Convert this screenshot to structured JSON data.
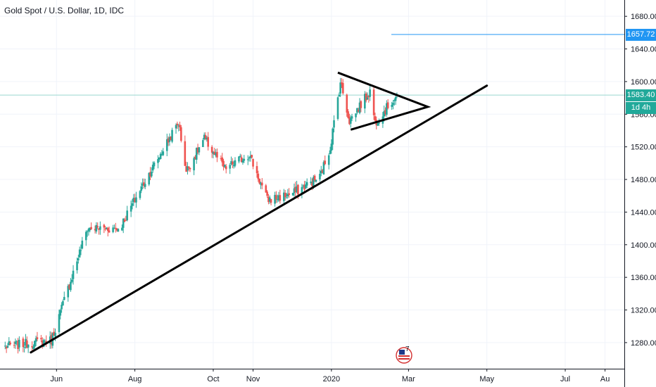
{
  "title": "Gold Spot / U.S. Dollar, 1D, IDC",
  "colors": {
    "up": "#26a69a",
    "down": "#ef5350",
    "current_line": "#9ad7cf",
    "target_line": "#2196f3",
    "countdown_bg": "#21a99a",
    "drawing": "#000000",
    "grid": "#f0f3fa",
    "axis_text": "#131722"
  },
  "price_labels": {
    "target": "1657.72",
    "current": "1583.40",
    "countdown": "1d 4h"
  },
  "logo_text": "7",
  "chart_data": {
    "type": "candlestick",
    "title": "Gold Spot / U.S. Dollar, 1D, IDC",
    "ylim": [
      1248,
      1700
    ],
    "yticks": [
      "1280.00",
      "1320.00",
      "1360.00",
      "1400.00",
      "1440.00",
      "1480.00",
      "1520.00",
      "1560.00",
      "1600.00",
      "1640.00",
      "1680.00"
    ],
    "ytick_values": [
      1280,
      1320,
      1360,
      1400,
      1440,
      1480,
      1520,
      1560,
      1600,
      1640,
      1680
    ],
    "xticks": [
      "Jun",
      "Aug",
      "Oct",
      "Nov",
      "2020",
      "Mar",
      "May",
      "Jul",
      "Au"
    ],
    "xtick_dates": [
      "2019-06-01",
      "2019-08-01",
      "2019-10-01",
      "2019-11-01",
      "2020-01-01",
      "2020-03-01",
      "2020-05-01",
      "2020-07-01",
      "2020-08-01"
    ],
    "xlim": [
      "2019-04-18",
      "2020-08-16"
    ],
    "grid": true,
    "current_price": 1583.4,
    "target_price": 1657.72,
    "anchors": [
      {
        "date": "2019-04-22",
        "price": 1275
      },
      {
        "date": "2019-05-28",
        "price": 1283
      },
      {
        "date": "2019-06-25",
        "price": 1420
      },
      {
        "date": "2019-07-20",
        "price": 1420
      },
      {
        "date": "2019-08-06",
        "price": 1470
      },
      {
        "date": "2019-09-04",
        "price": 1550
      },
      {
        "date": "2019-09-10",
        "price": 1490
      },
      {
        "date": "2019-09-24",
        "price": 1530
      },
      {
        "date": "2019-10-10",
        "price": 1493
      },
      {
        "date": "2019-10-29",
        "price": 1511
      },
      {
        "date": "2019-11-12",
        "price": 1455
      },
      {
        "date": "2019-12-01",
        "price": 1462
      },
      {
        "date": "2019-12-23",
        "price": 1483
      },
      {
        "date": "2019-12-31",
        "price": 1519
      },
      {
        "date": "2020-01-08",
        "price": 1600
      },
      {
        "date": "2020-01-15",
        "price": 1552
      },
      {
        "date": "2020-01-31",
        "price": 1588
      },
      {
        "date": "2020-02-04",
        "price": 1550
      },
      {
        "date": "2020-02-21",
        "price": 1583.4
      }
    ],
    "drawings": {
      "trendline": [
        {
          "date": "2019-05-12",
          "price": 1268
        },
        {
          "date": "2020-05-01",
          "price": 1595
        }
      ],
      "triangle": [
        {
          "date": "2020-01-06",
          "price": 1611
        },
        {
          "date": "2020-03-16",
          "price": 1569
        },
        {
          "date": "2020-01-16",
          "price": 1541
        }
      ]
    }
  }
}
